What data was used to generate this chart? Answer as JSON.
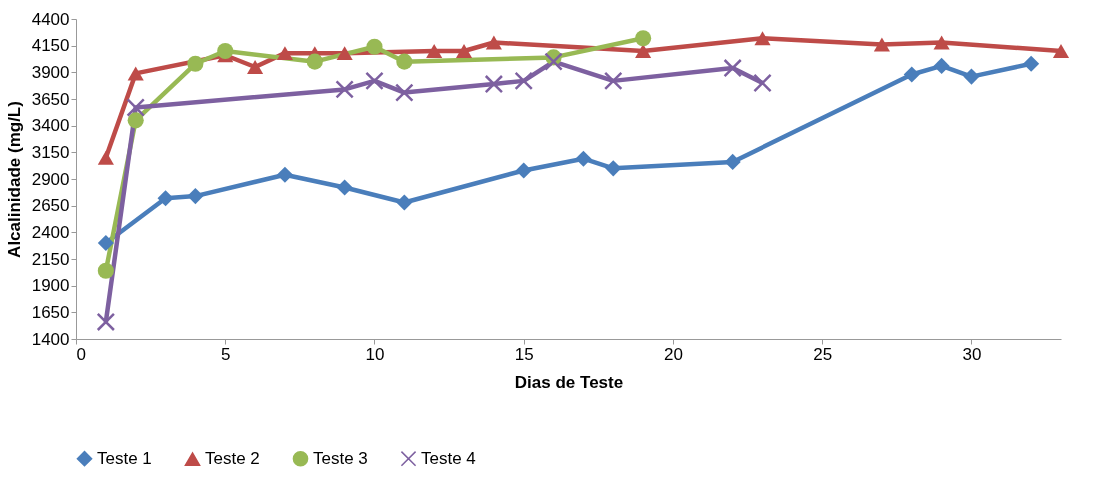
{
  "chart_data": {
    "type": "line",
    "xlabel": "Dias de Teste",
    "ylabel": "Alcalinidade (mg/L)",
    "xlim": [
      0,
      33
    ],
    "xticks": [
      0,
      5,
      10,
      15,
      20,
      25,
      30
    ],
    "ylim": [
      1400,
      4400
    ],
    "yticks": [
      1400,
      1650,
      1900,
      2150,
      2400,
      2650,
      2900,
      3150,
      3400,
      3650,
      3900,
      4150,
      4400
    ],
    "grid": false,
    "legend": "bottom",
    "line_style": "solid",
    "series": [
      {
        "name": "Teste 1",
        "color": "#4a7ebb",
        "marker": "diamond",
        "x": [
          1,
          3,
          4,
          7,
          9,
          11,
          15,
          17,
          18,
          22,
          28,
          29,
          30,
          32
        ],
        "values": [
          2300,
          2720,
          2740,
          2940,
          2820,
          2680,
          2980,
          3090,
          3000,
          3060,
          3880,
          3960,
          3860,
          3980
        ]
      },
      {
        "name": "Teste 2",
        "color": "#be4b48",
        "marker": "triangle",
        "x": [
          1,
          2,
          5,
          6,
          7,
          8,
          9,
          12,
          13,
          14,
          19,
          23,
          27,
          29,
          33
        ],
        "values": [
          3100,
          3890,
          4060,
          3950,
          4080,
          4080,
          4080,
          4100,
          4100,
          4180,
          4100,
          4220,
          4160,
          4180,
          4100
        ]
      },
      {
        "name": "Teste 3",
        "color": "#98b954",
        "marker": "circle",
        "x": [
          1,
          2,
          4,
          5,
          8,
          10,
          11,
          16,
          19
        ],
        "values": [
          2040,
          3450,
          3980,
          4100,
          4000,
          4140,
          4000,
          4040,
          4220
        ]
      },
      {
        "name": "Teste 4",
        "color": "#7d60a0",
        "marker": "cross",
        "x": [
          1,
          2,
          9,
          10,
          11,
          14,
          15,
          16,
          18,
          22,
          23
        ],
        "values": [
          1560,
          3570,
          3740,
          3820,
          3710,
          3790,
          3820,
          4000,
          3820,
          3940,
          3800
        ]
      }
    ]
  }
}
